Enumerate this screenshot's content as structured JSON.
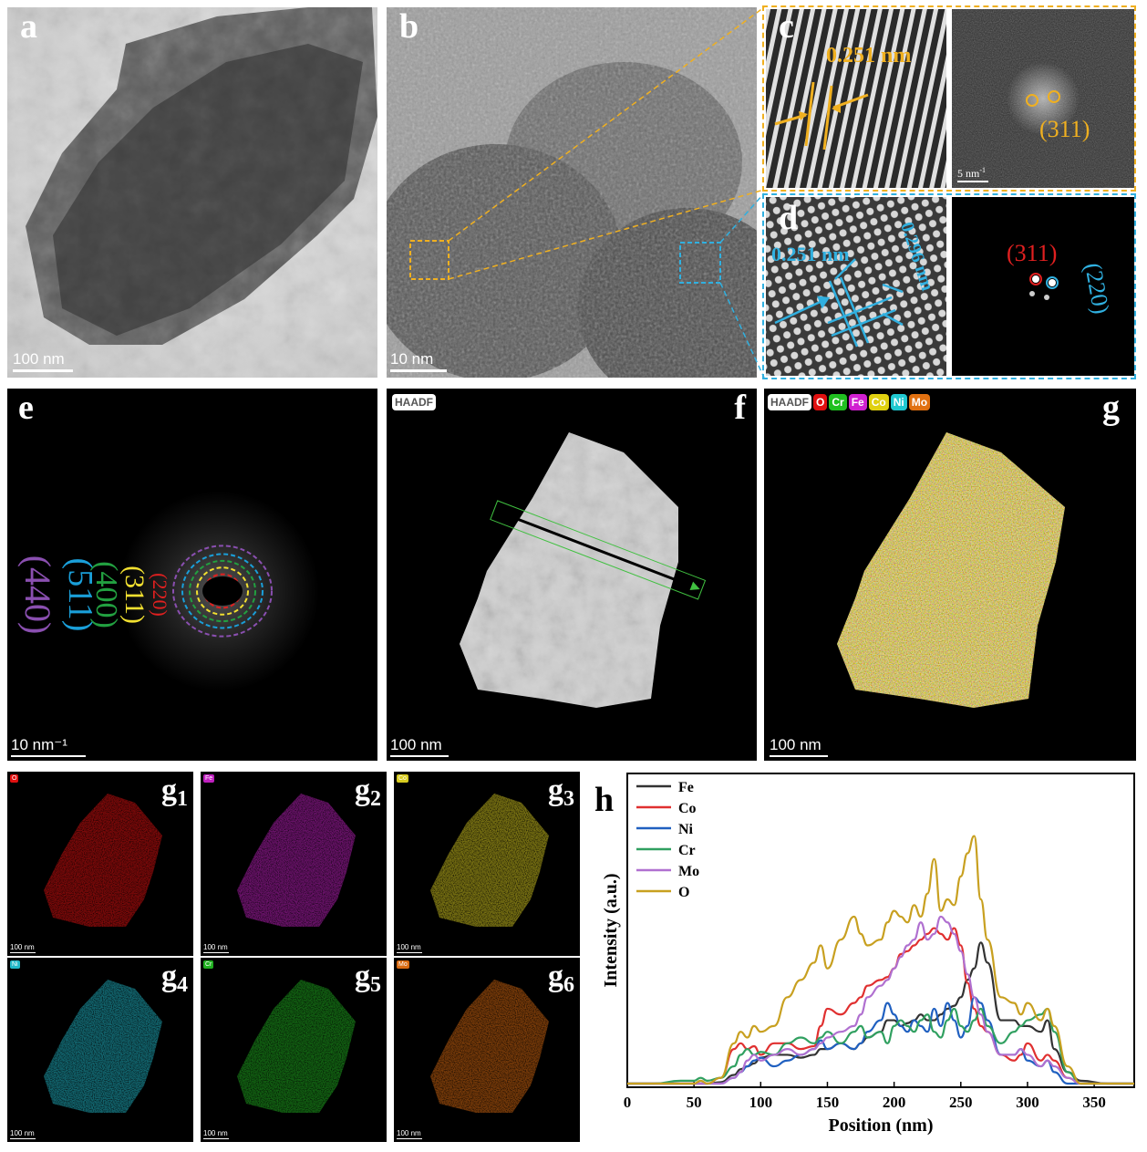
{
  "panels": {
    "a": {
      "label": "a",
      "scale": "100 nm"
    },
    "b": {
      "label": "b",
      "scale": "10 nm"
    },
    "c": {
      "label": "c",
      "spacing": "0.251 nm",
      "fft_scale": "5 nm",
      "fft_scale_sup": "-1",
      "plane": "(311)"
    },
    "d": {
      "label": "d",
      "spacing1": "0.251 nm",
      "spacing2": "0.296 nm",
      "plane1": "(311)",
      "plane2": "(220)"
    },
    "e": {
      "label": "e",
      "scale": "10 nm⁻¹",
      "rings": [
        {
          "plane": "(440)",
          "color": "#8a4fb0"
        },
        {
          "plane": "(511)",
          "color": "#1a9fd9"
        },
        {
          "plane": "(400)",
          "color": "#22a040"
        },
        {
          "plane": "(311)",
          "color": "#f2e030"
        },
        {
          "plane": "(220)",
          "color": "#e02020"
        }
      ]
    },
    "f": {
      "label": "f",
      "tag": "HAADF",
      "scale": "100 nm"
    },
    "g": {
      "label": "g",
      "tags": [
        {
          "text": "HAADF",
          "bg": "#ffffff",
          "fg": "#555555"
        },
        {
          "text": "O",
          "bg": "#e01010",
          "fg": "#ffffff"
        },
        {
          "text": "Cr",
          "bg": "#20c020",
          "fg": "#ffffff"
        },
        {
          "text": "Fe",
          "bg": "#d020d0",
          "fg": "#ffffff"
        },
        {
          "text": "Co",
          "bg": "#e0d010",
          "fg": "#ffffff"
        },
        {
          "text": "Ni",
          "bg": "#20c8d0",
          "fg": "#ffffff"
        },
        {
          "text": "Mo",
          "bg": "#e07010",
          "fg": "#ffffff"
        }
      ],
      "scale": "100 nm"
    },
    "g_maps": [
      {
        "label": "g",
        "sub": "1",
        "tag": "O",
        "color": "#e01010",
        "scale": "100 nm"
      },
      {
        "label": "g",
        "sub": "2",
        "tag": "Fe",
        "color": "#c020c0",
        "scale": "100 nm"
      },
      {
        "label": "g",
        "sub": "3",
        "tag": "Co",
        "color": "#d8cc20",
        "scale": "100 nm"
      },
      {
        "label": "g",
        "sub": "4",
        "tag": "Ni",
        "color": "#20b8c8",
        "scale": "100 nm"
      },
      {
        "label": "g",
        "sub": "5",
        "tag": "Cr",
        "color": "#20b020",
        "scale": "100 nm"
      },
      {
        "label": "g",
        "sub": "6",
        "tag": "Mo",
        "color": "#d86a10",
        "scale": "100 nm"
      }
    ],
    "h": {
      "label": "h"
    }
  },
  "chart_data": {
    "type": "line",
    "xlabel": "Position (nm)",
    "ylabel": "Intensity (a.u.)",
    "xlim": [
      0,
      380
    ],
    "xticks": [
      0,
      50,
      100,
      150,
      200,
      250,
      300,
      350
    ],
    "legend_position": "top-left",
    "x": [
      0,
      20,
      40,
      50,
      55,
      60,
      70,
      80,
      85,
      90,
      95,
      100,
      110,
      120,
      130,
      140,
      145,
      150,
      160,
      170,
      175,
      180,
      190,
      195,
      200,
      205,
      210,
      215,
      220,
      225,
      230,
      235,
      240,
      245,
      250,
      255,
      260,
      265,
      270,
      280,
      290,
      295,
      300,
      310,
      315,
      320,
      330,
      340,
      360,
      380
    ],
    "series": [
      {
        "name": "Fe",
        "color": "#333333",
        "values": [
          0,
          0,
          0,
          0,
          0,
          0,
          0.5,
          3,
          5,
          6,
          7,
          9,
          10,
          10,
          9,
          10,
          12,
          12,
          14,
          12,
          14,
          16,
          18,
          22,
          22,
          20,
          21,
          22,
          24,
          22,
          22,
          24,
          26,
          27,
          30,
          36,
          40,
          49,
          42,
          22,
          22,
          20,
          20,
          18,
          22,
          12,
          4,
          1,
          0,
          0
        ]
      },
      {
        "name": "Co",
        "color": "#e03030",
        "values": [
          0,
          0,
          0,
          0,
          0,
          0,
          2,
          12,
          14,
          12,
          13,
          10,
          14,
          14,
          12,
          13,
          20,
          26,
          24,
          28,
          30,
          34,
          36,
          37,
          40,
          45,
          46,
          48,
          50,
          52,
          54,
          52,
          50,
          54,
          48,
          35,
          26,
          20,
          18,
          10,
          8,
          10,
          14,
          8,
          10,
          8,
          2,
          0,
          0,
          0
        ]
      },
      {
        "name": "Ni",
        "color": "#2060c0",
        "values": [
          0,
          0,
          0,
          0,
          0,
          0,
          0,
          2,
          4,
          6,
          8,
          9,
          6,
          8,
          10,
          12,
          15,
          12,
          14,
          12,
          14,
          18,
          22,
          28,
          24,
          20,
          18,
          22,
          20,
          18,
          26,
          20,
          28,
          22,
          16,
          20,
          30,
          28,
          22,
          10,
          10,
          12,
          8,
          6,
          8,
          4,
          0,
          0,
          0,
          0
        ]
      },
      {
        "name": "Cr",
        "color": "#30a060",
        "values": [
          0,
          0,
          1,
          1,
          2,
          1,
          2,
          6,
          10,
          12,
          10,
          11,
          10,
          14,
          16,
          14,
          16,
          18,
          14,
          18,
          20,
          16,
          18,
          14,
          20,
          22,
          20,
          18,
          22,
          24,
          18,
          16,
          22,
          26,
          20,
          18,
          22,
          26,
          20,
          14,
          18,
          20,
          22,
          24,
          26,
          18,
          4,
          0,
          0,
          0
        ]
      },
      {
        "name": "Mo",
        "color": "#b070d0",
        "values": [
          0,
          0,
          0,
          0,
          0,
          0,
          0,
          2,
          4,
          8,
          10,
          8,
          10,
          12,
          10,
          12,
          14,
          16,
          18,
          20,
          24,
          30,
          34,
          36,
          40,
          44,
          48,
          50,
          56,
          50,
          52,
          58,
          56,
          52,
          46,
          38,
          30,
          24,
          18,
          10,
          10,
          12,
          10,
          6,
          8,
          6,
          2,
          0,
          0,
          0
        ]
      },
      {
        "name": "O",
        "color": "#c8a020",
        "values": [
          0,
          0,
          0,
          0,
          1,
          0,
          2,
          14,
          18,
          16,
          20,
          18,
          20,
          30,
          36,
          42,
          48,
          40,
          50,
          58,
          52,
          48,
          50,
          56,
          60,
          58,
          56,
          62,
          58,
          66,
          78,
          60,
          64,
          62,
          72,
          80,
          86,
          64,
          50,
          30,
          28,
          24,
          28,
          22,
          26,
          20,
          6,
          0,
          0,
          0
        ]
      }
    ]
  }
}
